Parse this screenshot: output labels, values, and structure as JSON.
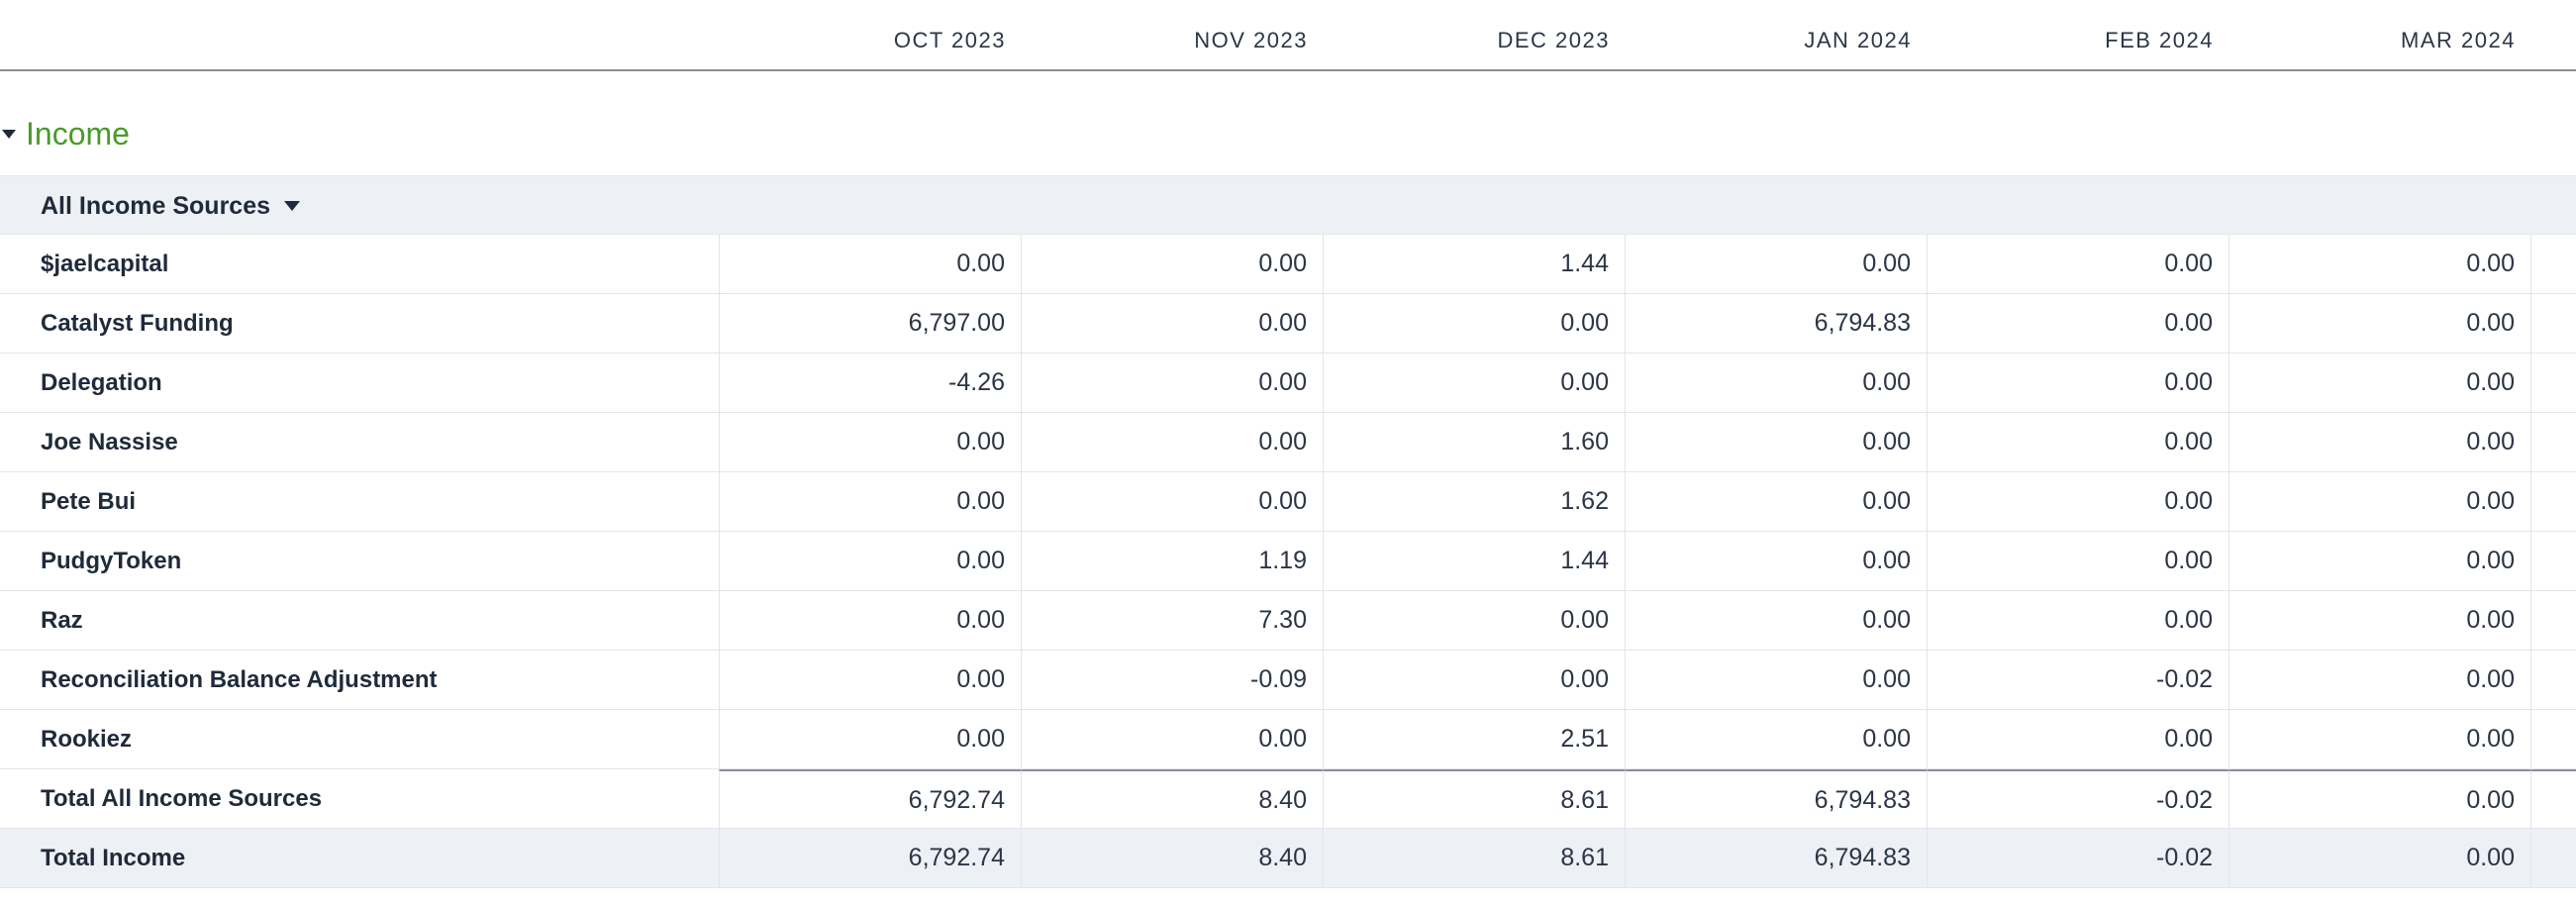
{
  "columns": [
    "OCT 2023",
    "NOV 2023",
    "DEC 2023",
    "JAN 2024",
    "FEB 2024",
    "MAR 2024"
  ],
  "section": {
    "title": "Income"
  },
  "group": {
    "label": "All Income Sources"
  },
  "rows": [
    {
      "label": "$jaelcapital",
      "values": [
        "0.00",
        "0.00",
        "1.44",
        "0.00",
        "0.00",
        "0.00"
      ]
    },
    {
      "label": "Catalyst Funding",
      "values": [
        "6,797.00",
        "0.00",
        "0.00",
        "6,794.83",
        "0.00",
        "0.00"
      ]
    },
    {
      "label": "Delegation",
      "values": [
        "-4.26",
        "0.00",
        "0.00",
        "0.00",
        "0.00",
        "0.00"
      ]
    },
    {
      "label": "Joe Nassise",
      "values": [
        "0.00",
        "0.00",
        "1.60",
        "0.00",
        "0.00",
        "0.00"
      ]
    },
    {
      "label": "Pete Bui",
      "values": [
        "0.00",
        "0.00",
        "1.62",
        "0.00",
        "0.00",
        "0.00"
      ]
    },
    {
      "label": "PudgyToken",
      "values": [
        "0.00",
        "1.19",
        "1.44",
        "0.00",
        "0.00",
        "0.00"
      ]
    },
    {
      "label": "Raz",
      "values": [
        "0.00",
        "7.30",
        "0.00",
        "0.00",
        "0.00",
        "0.00"
      ]
    },
    {
      "label": "Reconciliation Balance Adjustment",
      "values": [
        "0.00",
        "-0.09",
        "0.00",
        "0.00",
        "-0.02",
        "0.00"
      ]
    },
    {
      "label": "Rookiez",
      "values": [
        "0.00",
        "0.00",
        "2.51",
        "0.00",
        "0.00",
        "0.00"
      ]
    }
  ],
  "subtotal": {
    "label": "Total All Income Sources",
    "values": [
      "6,792.74",
      "8.40",
      "8.61",
      "6,794.83",
      "-0.02",
      "0.00"
    ]
  },
  "total": {
    "label": "Total Income",
    "values": [
      "6,792.74",
      "8.40",
      "8.61",
      "6,794.83",
      "-0.02",
      "0.00"
    ]
  }
}
